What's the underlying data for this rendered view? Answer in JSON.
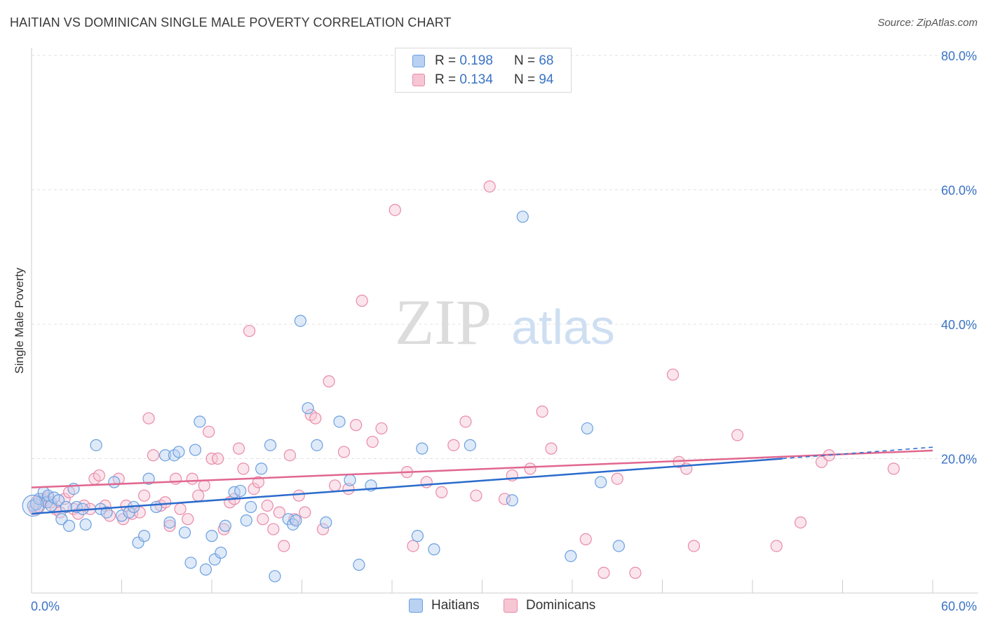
{
  "title": "HAITIAN VS DOMINICAN SINGLE MALE POVERTY CORRELATION CHART",
  "source": "Source: ZipAtlas.com",
  "watermark": {
    "zip": "ZIP",
    "atlas": "atlas"
  },
  "colors": {
    "haitians": "#6a9fe0",
    "haitians_fill": "#b9d1f2",
    "haitians_line": "#2a6bcc",
    "dominicans": "#e98aa8",
    "dominicans_fill": "#f6c6d4",
    "dominicans_line": "#e0678f",
    "axis_label": "#3a73c4"
  },
  "legend": {
    "rows": [
      {
        "r_label": "R =",
        "r_value": "0.198",
        "n_label": "N =",
        "n_value": "68"
      },
      {
        "r_label": "R =",
        "r_value": "0.134",
        "n_label": "N =",
        "n_value": "94"
      }
    ]
  },
  "bottom_legend": [
    "Haitians",
    "Dominicans"
  ],
  "chart_data": {
    "type": "scatter",
    "title": "HAITIAN VS DOMINICAN SINGLE MALE POVERTY CORRELATION CHART",
    "xlabel": "",
    "ylabel": "Single Male Poverty",
    "xlim": [
      0,
      60
    ],
    "ylim": [
      0,
      80
    ],
    "x_tick_labels": [
      "0.0%",
      "60.0%"
    ],
    "y_tick_labels": [
      "20.0%",
      "40.0%",
      "60.0%",
      "80.0%"
    ],
    "y_ticks": [
      20,
      40,
      60,
      80
    ],
    "x_minor_ticks": [
      0,
      6,
      12,
      18,
      24,
      30,
      36,
      42,
      48,
      54,
      60
    ],
    "grid": "horizontal dashed",
    "legend_position": "top-center",
    "series": [
      {
        "name": "Haitians",
        "trend": {
          "x": [
            0,
            50
          ],
          "y": [
            11.8,
            20.0
          ],
          "dashed_extension": {
            "x": [
              50,
              60
            ],
            "y": [
              20.0,
              21.7
            ]
          }
        },
        "points": [
          [
            0.1,
            13.0
          ],
          [
            0.3,
            13.2
          ],
          [
            0.5,
            14.0
          ],
          [
            0.8,
            15.0
          ],
          [
            1.0,
            13.5
          ],
          [
            1.1,
            14.5
          ],
          [
            1.3,
            13.0
          ],
          [
            1.5,
            14.2
          ],
          [
            1.8,
            13.8
          ],
          [
            2.0,
            11.0
          ],
          [
            2.3,
            12.8
          ],
          [
            2.5,
            10.0
          ],
          [
            2.8,
            15.5
          ],
          [
            3.0,
            12.8
          ],
          [
            3.4,
            12.5
          ],
          [
            3.6,
            10.2
          ],
          [
            4.3,
            22.0
          ],
          [
            4.6,
            12.5
          ],
          [
            5.0,
            12.0
          ],
          [
            5.5,
            16.5
          ],
          [
            6.0,
            11.5
          ],
          [
            6.5,
            12.0
          ],
          [
            6.8,
            12.8
          ],
          [
            7.1,
            7.5
          ],
          [
            7.5,
            8.5
          ],
          [
            7.8,
            17.0
          ],
          [
            8.3,
            12.8
          ],
          [
            8.9,
            20.5
          ],
          [
            9.2,
            10.5
          ],
          [
            9.5,
            20.5
          ],
          [
            9.8,
            21.0
          ],
          [
            10.2,
            9.0
          ],
          [
            10.6,
            4.5
          ],
          [
            10.9,
            21.3
          ],
          [
            11.2,
            25.5
          ],
          [
            11.6,
            3.5
          ],
          [
            12.0,
            8.5
          ],
          [
            12.2,
            5.0
          ],
          [
            12.6,
            6.0
          ],
          [
            12.9,
            10.0
          ],
          [
            13.5,
            15.0
          ],
          [
            13.9,
            15.2
          ],
          [
            14.3,
            10.8
          ],
          [
            14.6,
            12.8
          ],
          [
            15.3,
            18.5
          ],
          [
            15.9,
            22.0
          ],
          [
            16.2,
            2.5
          ],
          [
            17.1,
            11.0
          ],
          [
            17.4,
            10.2
          ],
          [
            17.6,
            10.8
          ],
          [
            17.9,
            40.5
          ],
          [
            18.4,
            27.5
          ],
          [
            19.0,
            22.0
          ],
          [
            19.6,
            10.5
          ],
          [
            20.5,
            25.5
          ],
          [
            21.2,
            16.8
          ],
          [
            21.8,
            4.2
          ],
          [
            22.6,
            16.0
          ],
          [
            25.7,
            8.5
          ],
          [
            26.0,
            21.5
          ],
          [
            26.8,
            6.5
          ],
          [
            29.2,
            22.0
          ],
          [
            32.0,
            13.8
          ],
          [
            32.7,
            56.0
          ],
          [
            35.9,
            5.5
          ],
          [
            37.0,
            24.5
          ],
          [
            37.9,
            16.5
          ],
          [
            39.1,
            7.0
          ]
        ]
      },
      {
        "name": "Dominicans",
        "trend": {
          "x": [
            0,
            60
          ],
          "y": [
            15.7,
            21.2
          ]
        },
        "points": [
          [
            0.1,
            13.0
          ],
          [
            0.2,
            12.5
          ],
          [
            0.3,
            13.5
          ],
          [
            0.5,
            12.8
          ],
          [
            0.7,
            14.0
          ],
          [
            0.9,
            13.8
          ],
          [
            1.1,
            14.2
          ],
          [
            1.3,
            13.5
          ],
          [
            1.6,
            12.5
          ],
          [
            1.9,
            12.0
          ],
          [
            2.2,
            14.0
          ],
          [
            2.5,
            15.0
          ],
          [
            2.8,
            12.5
          ],
          [
            3.1,
            11.8
          ],
          [
            3.5,
            13.0
          ],
          [
            3.9,
            12.5
          ],
          [
            4.2,
            17.0
          ],
          [
            4.5,
            17.5
          ],
          [
            4.9,
            13.0
          ],
          [
            5.2,
            11.5
          ],
          [
            5.8,
            17.0
          ],
          [
            6.1,
            11.0
          ],
          [
            6.3,
            13.0
          ],
          [
            6.7,
            11.8
          ],
          [
            7.2,
            12.0
          ],
          [
            7.5,
            14.5
          ],
          [
            7.8,
            26.0
          ],
          [
            8.1,
            20.5
          ],
          [
            8.6,
            13.0
          ],
          [
            8.9,
            13.5
          ],
          [
            9.2,
            10.0
          ],
          [
            9.6,
            17.0
          ],
          [
            9.9,
            12.5
          ],
          [
            10.4,
            11.0
          ],
          [
            10.7,
            17.0
          ],
          [
            11.1,
            14.5
          ],
          [
            11.5,
            16.0
          ],
          [
            11.8,
            24.0
          ],
          [
            12.0,
            20.0
          ],
          [
            12.4,
            20.0
          ],
          [
            12.8,
            9.5
          ],
          [
            13.2,
            13.5
          ],
          [
            13.5,
            14.0
          ],
          [
            13.8,
            21.5
          ],
          [
            14.1,
            18.5
          ],
          [
            14.5,
            39.0
          ],
          [
            14.8,
            15.5
          ],
          [
            15.1,
            16.5
          ],
          [
            15.4,
            11.0
          ],
          [
            15.7,
            13.0
          ],
          [
            16.1,
            9.5
          ],
          [
            16.5,
            12.0
          ],
          [
            16.8,
            7.0
          ],
          [
            17.2,
            20.5
          ],
          [
            17.5,
            11.0
          ],
          [
            17.8,
            14.5
          ],
          [
            18.2,
            12.0
          ],
          [
            18.6,
            26.5
          ],
          [
            18.9,
            26.0
          ],
          [
            19.4,
            9.5
          ],
          [
            19.8,
            31.5
          ],
          [
            20.2,
            16.0
          ],
          [
            20.8,
            21.0
          ],
          [
            21.1,
            15.5
          ],
          [
            21.6,
            25.0
          ],
          [
            22.0,
            43.5
          ],
          [
            22.7,
            22.5
          ],
          [
            23.3,
            24.5
          ],
          [
            24.2,
            57.0
          ],
          [
            25.0,
            18.0
          ],
          [
            25.4,
            7.0
          ],
          [
            26.3,
            16.5
          ],
          [
            27.3,
            15.0
          ],
          [
            28.1,
            22.0
          ],
          [
            28.9,
            25.5
          ],
          [
            29.6,
            14.5
          ],
          [
            30.5,
            60.5
          ],
          [
            31.5,
            14.0
          ],
          [
            32.0,
            17.5
          ],
          [
            33.2,
            18.5
          ],
          [
            34.0,
            27.0
          ],
          [
            34.6,
            21.5
          ],
          [
            36.9,
            8.0
          ],
          [
            38.1,
            3.0
          ],
          [
            39.0,
            17.0
          ],
          [
            40.2,
            3.0
          ],
          [
            42.7,
            32.5
          ],
          [
            43.1,
            19.5
          ],
          [
            43.6,
            18.5
          ],
          [
            44.1,
            7.0
          ],
          [
            47.0,
            23.5
          ],
          [
            49.6,
            7.0
          ],
          [
            51.2,
            10.5
          ],
          [
            52.6,
            19.5
          ],
          [
            53.1,
            20.5
          ],
          [
            57.4,
            18.5
          ]
        ]
      }
    ]
  }
}
